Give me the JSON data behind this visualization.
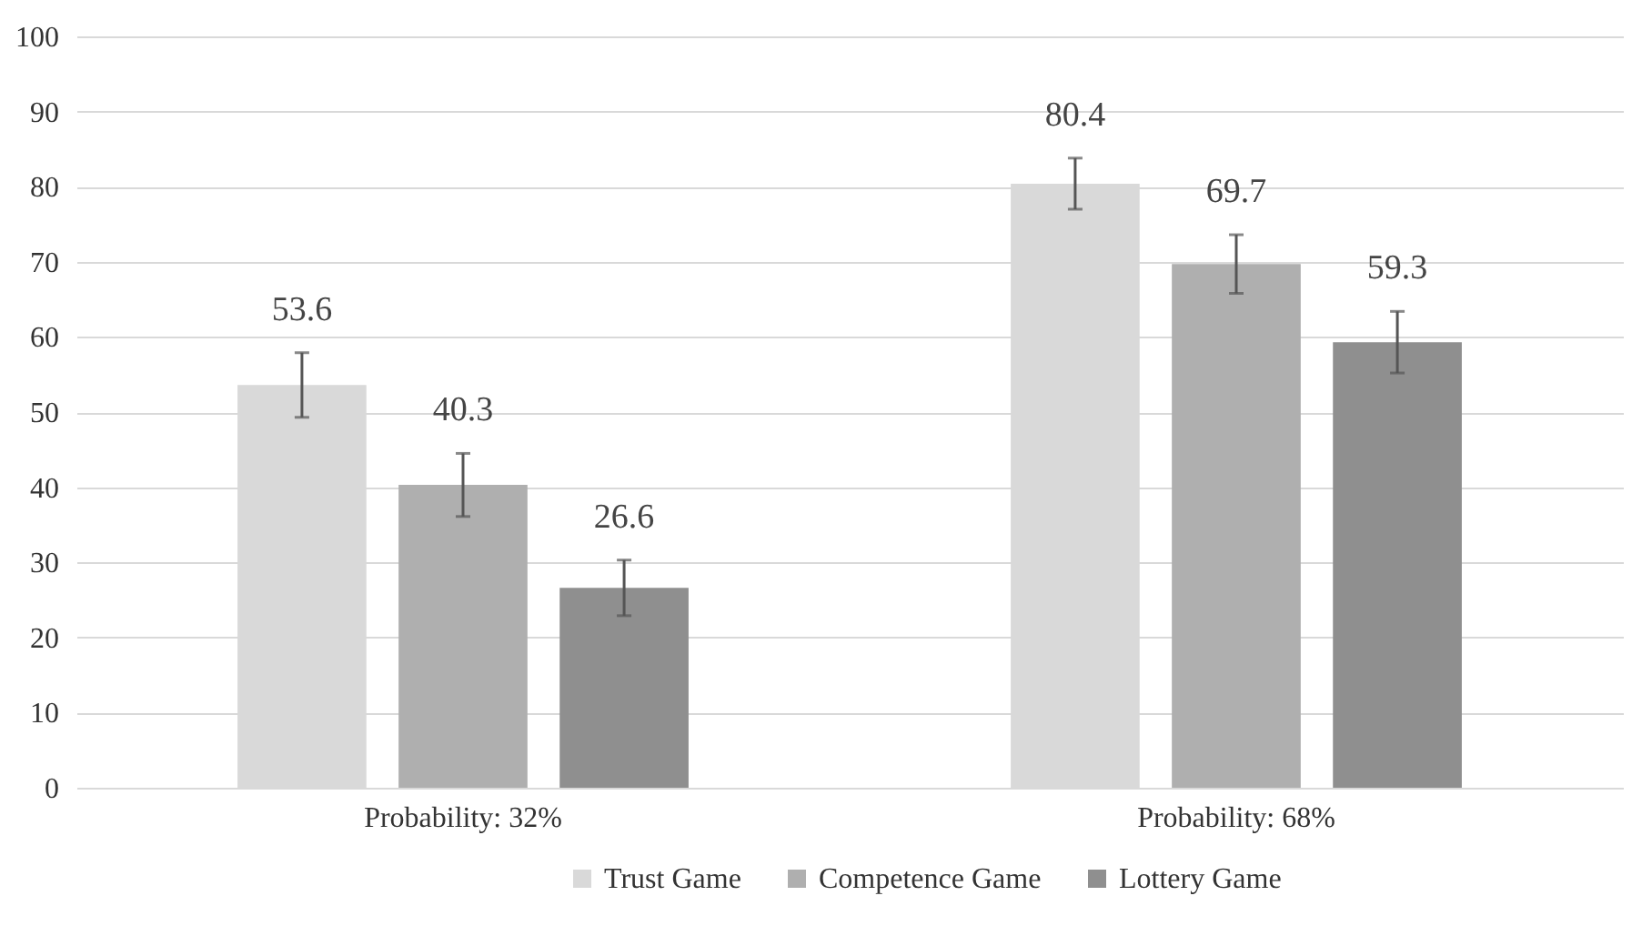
{
  "chart_data": {
    "type": "bar",
    "categories": [
      "Probability: 32%",
      "Probability: 68%"
    ],
    "series": [
      {
        "name": "Trust Game",
        "color": "#d9d9d9",
        "values": [
          53.6,
          80.4
        ],
        "errors": [
          4.3,
          3.4
        ]
      },
      {
        "name": "Competence Game",
        "color": "#afafaf",
        "values": [
          40.3,
          69.7
        ],
        "errors": [
          4.2,
          3.9
        ]
      },
      {
        "name": "Lottery Game",
        "color": "#8f8f8f",
        "values": [
          26.6,
          59.3
        ],
        "errors": [
          3.7,
          4.1
        ]
      }
    ],
    "ylim": [
      0,
      100
    ],
    "yticks": [
      0,
      10,
      20,
      30,
      40,
      50,
      60,
      70,
      80,
      90,
      100
    ],
    "grid": "y",
    "legend": "bottom",
    "data_labels": true
  }
}
